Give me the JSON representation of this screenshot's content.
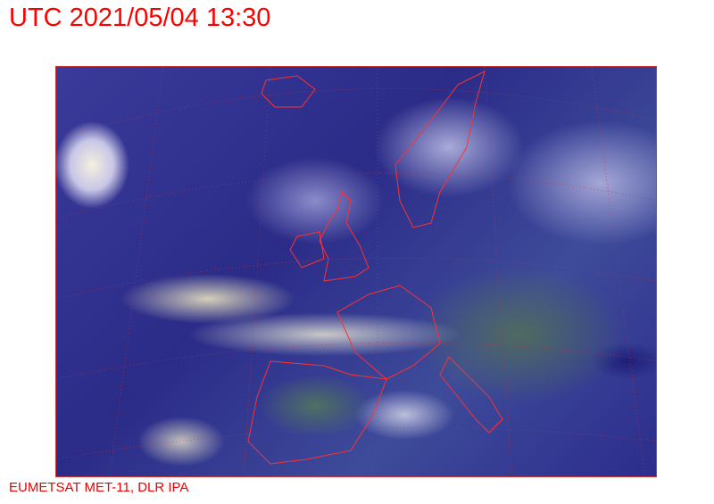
{
  "header": {
    "title": "UTC 2021/05/04 13:30"
  },
  "footer": {
    "credit": "EUMETSAT MET-11, DLR IPA"
  },
  "map": {
    "type": "satellite-composite",
    "region": "Europe / North Atlantic",
    "border_color": "#ff2020"
  }
}
